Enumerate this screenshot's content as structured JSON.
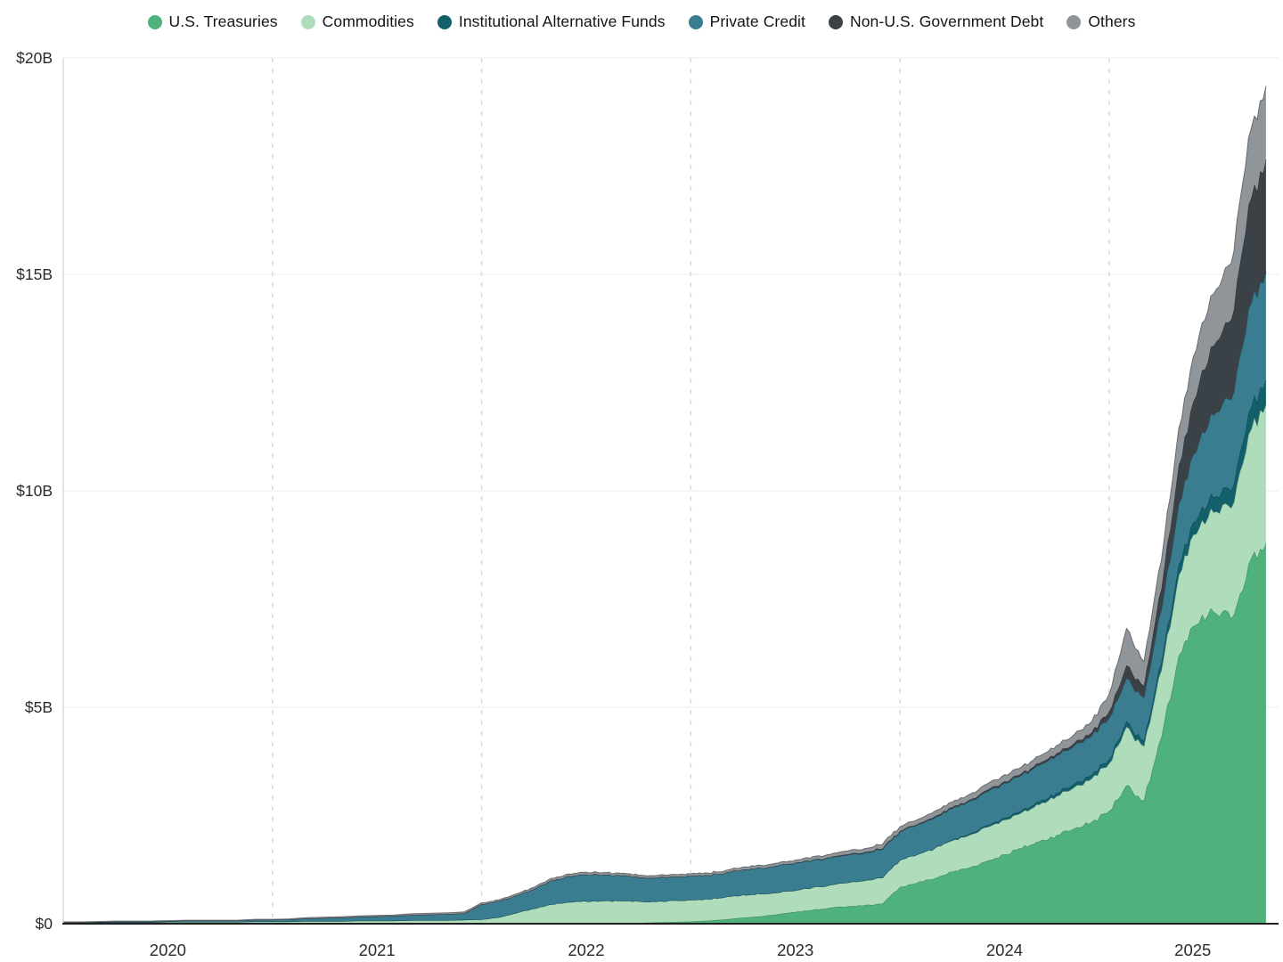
{
  "chart_data": {
    "type": "area",
    "stacked": true,
    "title": "",
    "unit": "USD billions",
    "y_max": 20,
    "x_domain": [
      2020.0,
      2025.81
    ],
    "x_start": 2020.0,
    "points_per_year": 12,
    "grid_years": [
      2021,
      2022,
      2023,
      2024,
      2025
    ],
    "y_ticks": [
      {
        "label": "$0",
        "value": 0
      },
      {
        "label": "$5B",
        "value": 5
      },
      {
        "label": "$10B",
        "value": 10
      },
      {
        "label": "$15B",
        "value": 15
      },
      {
        "label": "$20B",
        "value": 20
      }
    ],
    "x_ticks": [
      {
        "label": "2020",
        "year": 2020.5
      },
      {
        "label": "2021",
        "year": 2021.5
      },
      {
        "label": "2022",
        "year": 2022.5
      },
      {
        "label": "2023",
        "year": 2023.5
      },
      {
        "label": "2024",
        "year": 2024.5
      },
      {
        "label": "2025",
        "year": 2025.4
      }
    ],
    "series": [
      {
        "name": "U.S. Treasuries",
        "color": "#4FB27D",
        "values": [
          0,
          0,
          0,
          0,
          0,
          0,
          0,
          0,
          0,
          0,
          0,
          0,
          0,
          0,
          0,
          0,
          0,
          0,
          0,
          0,
          0,
          0,
          0,
          0,
          0,
          0,
          0,
          0,
          0,
          0,
          0,
          0,
          0.01,
          0.02,
          0.03,
          0.04,
          0.05,
          0.07,
          0.1,
          0.14,
          0.17,
          0.22,
          0.27,
          0.32,
          0.37,
          0.4,
          0.43,
          0.46,
          0.85,
          0.95,
          1.05,
          1.2,
          1.3,
          1.45,
          1.6,
          1.75,
          1.9,
          2.05,
          2.2,
          2.35,
          2.6,
          3.2,
          2.85,
          4.3,
          6.2,
          6.9,
          7.2,
          7.05,
          8.3,
          8.8
        ]
      },
      {
        "name": "Commodities",
        "color": "#AFDDBC",
        "values": [
          0.02,
          0.02,
          0.03,
          0.03,
          0.03,
          0.03,
          0.04,
          0.04,
          0.04,
          0.04,
          0.04,
          0.05,
          0.05,
          0.05,
          0.06,
          0.06,
          0.06,
          0.07,
          0.07,
          0.07,
          0.08,
          0.08,
          0.08,
          0.09,
          0.1,
          0.15,
          0.25,
          0.35,
          0.45,
          0.5,
          0.52,
          0.53,
          0.52,
          0.5,
          0.48,
          0.5,
          0.5,
          0.5,
          0.52,
          0.53,
          0.52,
          0.5,
          0.5,
          0.52,
          0.53,
          0.55,
          0.57,
          0.6,
          0.62,
          0.65,
          0.7,
          0.72,
          0.75,
          0.78,
          0.8,
          0.82,
          0.85,
          0.9,
          0.95,
          1.0,
          1.1,
          1.35,
          1.25,
          1.55,
          1.85,
          2.1,
          2.3,
          2.55,
          3.0,
          3.2
        ]
      },
      {
        "name": "Institutional Alternative Funds",
        "color": "#11606A",
        "values": [
          0,
          0,
          0,
          0,
          0,
          0,
          0,
          0,
          0,
          0,
          0,
          0,
          0,
          0,
          0,
          0,
          0,
          0,
          0,
          0,
          0,
          0,
          0,
          0,
          0,
          0,
          0,
          0,
          0,
          0,
          0,
          0,
          0,
          0,
          0,
          0,
          0,
          0,
          0,
          0,
          0,
          0,
          0,
          0,
          0,
          0,
          0,
          0,
          0,
          0,
          0,
          0.02,
          0.03,
          0.04,
          0.05,
          0.05,
          0.06,
          0.07,
          0.08,
          0.09,
          0.1,
          0.12,
          0.12,
          0.18,
          0.25,
          0.3,
          0.35,
          0.4,
          0.5,
          0.55
        ]
      },
      {
        "name": "Private Credit",
        "color": "#3A7D90",
        "values": [
          0.01,
          0.01,
          0.01,
          0.02,
          0.02,
          0.02,
          0.02,
          0.03,
          0.03,
          0.03,
          0.03,
          0.04,
          0.04,
          0.05,
          0.06,
          0.07,
          0.08,
          0.09,
          0.1,
          0.11,
          0.12,
          0.13,
          0.14,
          0.15,
          0.35,
          0.37,
          0.4,
          0.45,
          0.55,
          0.6,
          0.62,
          0.6,
          0.58,
          0.55,
          0.55,
          0.55,
          0.55,
          0.55,
          0.56,
          0.58,
          0.6,
          0.62,
          0.63,
          0.63,
          0.62,
          0.63,
          0.64,
          0.65,
          0.65,
          0.68,
          0.7,
          0.72,
          0.75,
          0.78,
          0.8,
          0.82,
          0.85,
          0.87,
          0.88,
          0.9,
          0.95,
          1.0,
          1.0,
          1.2,
          1.4,
          1.6,
          1.9,
          2.1,
          2.4,
          2.5
        ]
      },
      {
        "name": "Non-U.S. Government Debt",
        "color": "#3A4147",
        "values": [
          0,
          0,
          0,
          0,
          0,
          0,
          0,
          0,
          0,
          0,
          0,
          0,
          0,
          0,
          0,
          0,
          0,
          0,
          0,
          0,
          0,
          0,
          0,
          0,
          0,
          0,
          0,
          0,
          0,
          0,
          0,
          0,
          0,
          0,
          0,
          0,
          0,
          0,
          0,
          0,
          0,
          0,
          0.01,
          0.01,
          0.01,
          0.02,
          0.02,
          0.02,
          0.02,
          0.02,
          0.03,
          0.03,
          0.03,
          0.04,
          0.04,
          0.04,
          0.05,
          0.05,
          0.06,
          0.08,
          0.15,
          0.3,
          0.28,
          0.5,
          0.9,
          1.3,
          1.6,
          1.85,
          2.4,
          2.6
        ]
      },
      {
        "name": "Others",
        "color": "#90959A",
        "values": [
          0.01,
          0.01,
          0.01,
          0.01,
          0.01,
          0.01,
          0.01,
          0.01,
          0.01,
          0.01,
          0.01,
          0.01,
          0.01,
          0.01,
          0.02,
          0.02,
          0.02,
          0.02,
          0.02,
          0.02,
          0.03,
          0.03,
          0.03,
          0.03,
          0.03,
          0.03,
          0.04,
          0.04,
          0.05,
          0.05,
          0.05,
          0.05,
          0.05,
          0.05,
          0.05,
          0.05,
          0.05,
          0.05,
          0.05,
          0.06,
          0.06,
          0.06,
          0.06,
          0.07,
          0.07,
          0.08,
          0.08,
          0.1,
          0.1,
          0.1,
          0.12,
          0.12,
          0.13,
          0.14,
          0.15,
          0.15,
          0.16,
          0.18,
          0.2,
          0.25,
          0.4,
          0.85,
          0.55,
          0.65,
          0.85,
          1.05,
          1.2,
          1.3,
          1.55,
          1.7
        ]
      }
    ],
    "style": {
      "grid_dash_color": "#d9d9d9",
      "grid_h_color": "#ededed",
      "axis_x_color": "#1f1f1f",
      "axis_y_color": "#c9c9c9",
      "tick_text_color": "#2b2b2b"
    }
  }
}
